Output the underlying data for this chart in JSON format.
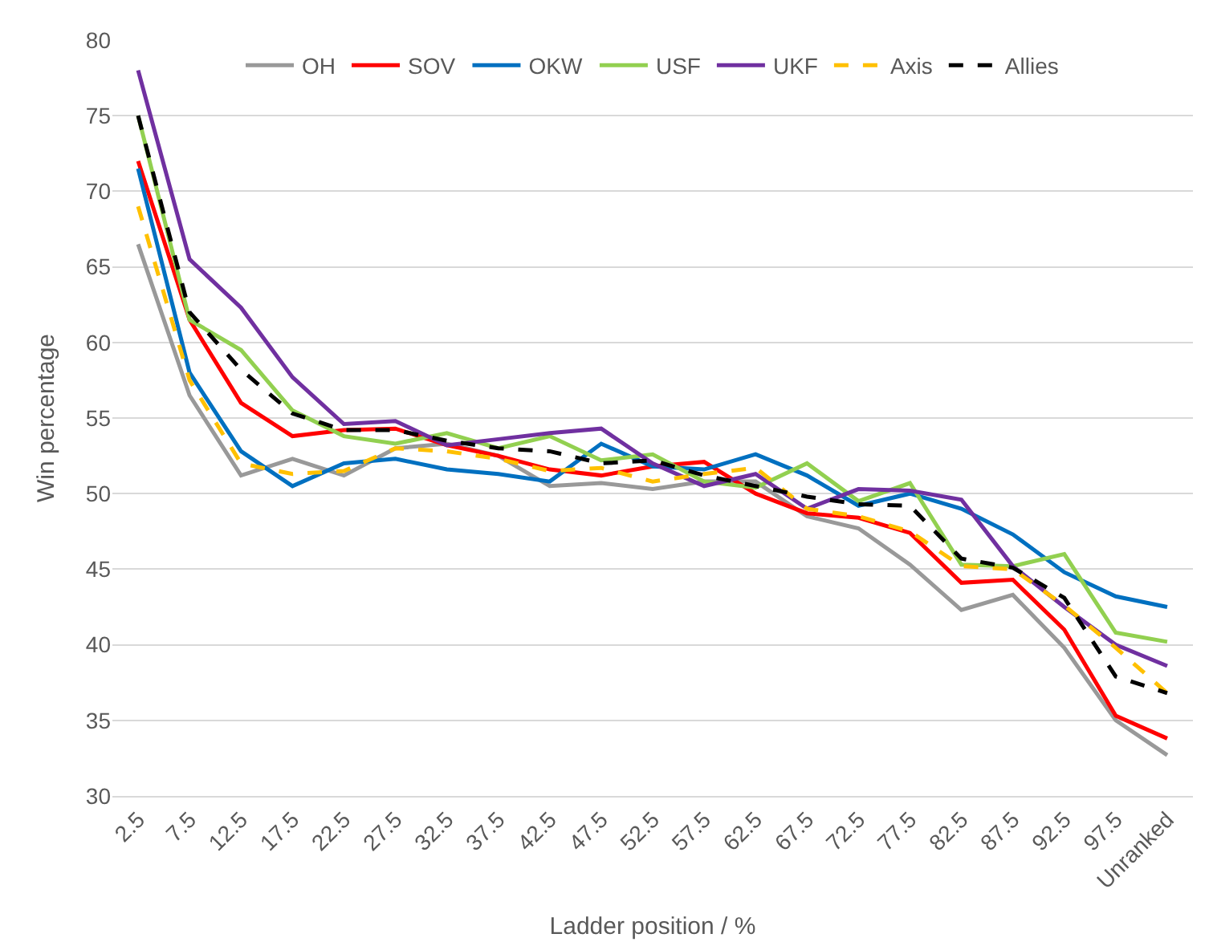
{
  "chart_data": {
    "type": "line",
    "xlabel": "Ladder position / %",
    "ylabel": "Win percentage",
    "categories": [
      "2.5",
      "7.5",
      "12.5",
      "17.5",
      "22.5",
      "27.5",
      "32.5",
      "37.5",
      "42.5",
      "47.5",
      "52.5",
      "57.5",
      "62.5",
      "67.5",
      "72.5",
      "77.5",
      "82.5",
      "87.5",
      "92.5",
      "97.5",
      "Unranked"
    ],
    "ylim": [
      30,
      80
    ],
    "yticks": [
      30,
      35,
      40,
      45,
      50,
      55,
      60,
      65,
      70,
      75,
      80
    ],
    "grid": "y",
    "legend": "top",
    "marker": "none",
    "series": [
      {
        "name": "OH",
        "color": "#999999",
        "line_style": "solid",
        "values": [
          66.5,
          56.5,
          51.2,
          52.3,
          51.2,
          53,
          53.3,
          52.5,
          50.5,
          50.7,
          50.3,
          50.8,
          50.8,
          48.5,
          47.7,
          45.3,
          42.3,
          43.3,
          39.8,
          35,
          32.7
        ]
      },
      {
        "name": "SOV",
        "color": "#ff0000",
        "line_style": "solid",
        "values": [
          72,
          61.5,
          56,
          53.8,
          54.2,
          54.3,
          53.2,
          52.5,
          51.6,
          51.2,
          51.8,
          52.1,
          50,
          48.7,
          48.4,
          47.4,
          44.1,
          44.3,
          41,
          35.3,
          33.8
        ]
      },
      {
        "name": "OKW",
        "color": "#0070c0",
        "line_style": "solid",
        "values": [
          71.5,
          58,
          52.8,
          50.5,
          52,
          52.3,
          51.6,
          51.3,
          50.8,
          53.3,
          51.8,
          51.6,
          52.6,
          51.2,
          49.2,
          50,
          49,
          47.3,
          44.8,
          43.2,
          42.5
        ]
      },
      {
        "name": "USF",
        "color": "#92d050",
        "line_style": "solid",
        "values": [
          75,
          61.5,
          59.5,
          55.5,
          53.8,
          53.3,
          54,
          53,
          53.8,
          52.2,
          52.6,
          50.8,
          50.4,
          52,
          49.5,
          50.7,
          45.3,
          45.2,
          46,
          40.8,
          40.2
        ]
      },
      {
        "name": "UKF",
        "color": "#7030a0",
        "line_style": "solid",
        "values": [
          78,
          65.5,
          62.3,
          57.7,
          54.6,
          54.8,
          53.2,
          53.6,
          54,
          54.3,
          52,
          50.5,
          51.3,
          49,
          50.3,
          50.2,
          49.6,
          45.2,
          42.5,
          40,
          38.6
        ]
      },
      {
        "name": "Axis",
        "color": "#ffc000",
        "line_style": "dashed",
        "values": [
          69,
          57.5,
          52,
          51.3,
          51.5,
          53,
          52.8,
          52.3,
          51.5,
          51.7,
          50.8,
          51.3,
          51.7,
          49,
          48.5,
          47.5,
          45.2,
          45,
          42.6,
          39.8,
          36.8
        ]
      },
      {
        "name": "Allies",
        "color": "#000000",
        "line_style": "dashed",
        "values": [
          75,
          62,
          58.2,
          55.3,
          54.2,
          54.2,
          53.5,
          53,
          52.8,
          52,
          52.2,
          51.2,
          50.5,
          49.8,
          49.3,
          49.2,
          45.7,
          45.1,
          43.1,
          37.9,
          36.8
        ]
      }
    ]
  }
}
